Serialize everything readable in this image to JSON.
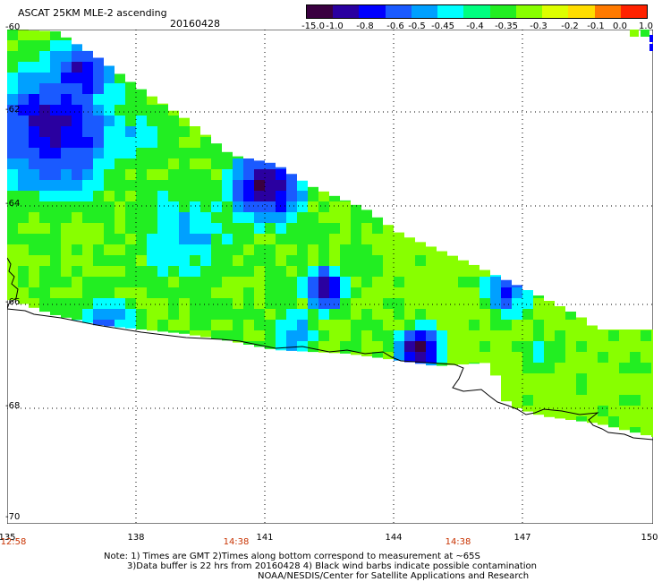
{
  "header": {
    "title": "ASCAT 25KM MLE-2 ascending",
    "date": "20160428"
  },
  "colorbar": {
    "labels": [
      "-15.0",
      "-1.0",
      "-0.8",
      "-0.6",
      "-0.5",
      "-0.45",
      "-0.4",
      "-0.35",
      "-0.3",
      "-0.2",
      "-0.1",
      "0.0",
      "1.0"
    ],
    "colors": [
      "#3a0040",
      "#2a00a0",
      "#0000ff",
      "#1a5aff",
      "#00a0ff",
      "#00ffff",
      "#00ff80",
      "#22ee22",
      "#88ff00",
      "#ddff00",
      "#ffdd00",
      "#ff7a00",
      "#ff2200"
    ]
  },
  "axes": {
    "lat_labels": [
      "-60",
      "-62",
      "-64",
      "-66",
      "-68",
      "-70"
    ],
    "lon_labels": [
      "135",
      "138",
      "141",
      "144",
      "147",
      "150"
    ],
    "time_labels": [
      "12:58",
      "14:38",
      "14:38"
    ]
  },
  "notes": {
    "line1": "Note: 1) Times are GMT 2)Times along bottom correspond to measurement at ~65S",
    "line2": "3)Data buffer is 22 hrs from 20160428 4) Black wind barbs indicate possible contamination",
    "line3": "NOAA/NESDIS/Center for Satellite Applications and Research"
  },
  "palette": {
    "green": "#22ee22",
    "lime": "#88ff00",
    "cyan": "#00ffff",
    "blue": "#1a5aff",
    "deep_blue": "#0000ff",
    "dark_blue": "#2a00a0",
    "purple": "#3a0040",
    "light_blue": "#00a0ff"
  }
}
